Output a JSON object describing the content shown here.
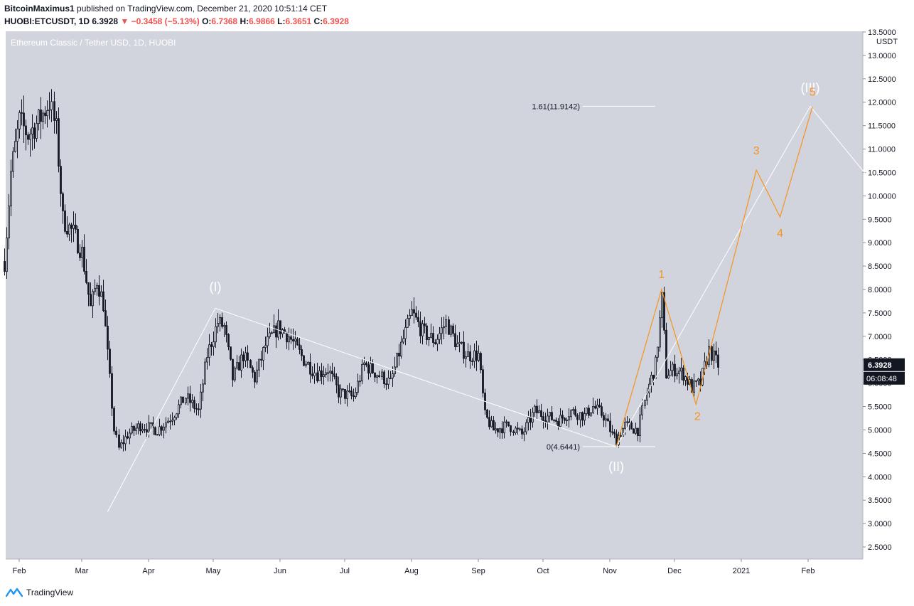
{
  "header": {
    "author": "BitcoinMaximus1",
    "published_text": "published on TradingView.com, December 21, 2020 10:51:14 CET",
    "symbol": "HUOBI:ETCUSDT, 1D",
    "last": "6.3928",
    "change_arrow": "▼",
    "change": "−0.3458 (−5.13%)",
    "o_label": "O:",
    "o_value": "6.7368",
    "h_label": "H:",
    "h_value": "6.9866",
    "l_label": "L:",
    "l_value": "6.3651",
    "c_label": "C:",
    "c_value": "6.3928"
  },
  "footer": {
    "brand": "TradingView",
    "logo_icon": "tradingview-logo-icon"
  },
  "colors": {
    "plot_bg": "#d1d4dc",
    "candle": "#131722",
    "wave_orange": "#f7931a",
    "wave_white": "#ffffff",
    "axis_text": "#131722",
    "negative": "#ef5350"
  },
  "chart_data": {
    "type": "candlestick",
    "title": "Ethereum Classic / Tether USD, 1D, HUOBI",
    "currency_label": "USDT",
    "last_price_tag": "6.3928",
    "countdown_tag": "06:08:48",
    "ylim": [
      2.1,
      13.6
    ],
    "y_ticks": [
      "13.5000",
      "13.0000",
      "12.5000",
      "12.0000",
      "11.5000",
      "11.0000",
      "10.5000",
      "10.0000",
      "9.5000",
      "9.0000",
      "8.5000",
      "8.0000",
      "7.5000",
      "7.0000",
      "6.5000",
      "6.0000",
      "5.5000",
      "5.0000",
      "4.5000",
      "4.0000",
      "3.5000",
      "3.0000",
      "2.5000"
    ],
    "x_ticks": [
      {
        "label": "Feb",
        "date": "2020-02-01"
      },
      {
        "label": "Mar",
        "date": "2020-03-01"
      },
      {
        "label": "Apr",
        "date": "2020-04-01"
      },
      {
        "label": "May",
        "date": "2020-05-01"
      },
      {
        "label": "Jun",
        "date": "2020-06-01"
      },
      {
        "label": "Jul",
        "date": "2020-07-01"
      },
      {
        "label": "Aug",
        "date": "2020-08-01"
      },
      {
        "label": "Sep",
        "date": "2020-09-01"
      },
      {
        "label": "Oct",
        "date": "2020-10-01"
      },
      {
        "label": "Nov",
        "date": "2020-11-01"
      },
      {
        "label": "Dec",
        "date": "2020-12-01"
      },
      {
        "label": "2021",
        "date": "2021-01-01"
      },
      {
        "label": "Feb",
        "date": "2021-02-01"
      }
    ],
    "price_path": [
      {
        "date": "2020-01-25",
        "close": 8.6
      },
      {
        "date": "2020-01-28",
        "close": 10.5
      },
      {
        "date": "2020-02-01",
        "close": 11.6
      },
      {
        "date": "2020-02-05",
        "close": 11.3
      },
      {
        "date": "2020-02-10",
        "close": 11.6
      },
      {
        "date": "2020-02-15",
        "close": 12.0
      },
      {
        "date": "2020-02-18",
        "close": 11.4
      },
      {
        "date": "2020-02-21",
        "close": 9.5
      },
      {
        "date": "2020-02-26",
        "close": 9.2
      },
      {
        "date": "2020-03-01",
        "close": 8.8
      },
      {
        "date": "2020-03-05",
        "close": 7.6
      },
      {
        "date": "2020-03-08",
        "close": 8.2
      },
      {
        "date": "2020-03-11",
        "close": 7.7
      },
      {
        "date": "2020-03-13",
        "close": 6.6
      },
      {
        "date": "2020-03-16",
        "close": 5.0
      },
      {
        "date": "2020-03-18",
        "close": 4.6
      },
      {
        "date": "2020-03-22",
        "close": 4.9
      },
      {
        "date": "2020-03-28",
        "close": 5.1
      },
      {
        "date": "2020-04-05",
        "close": 5.0
      },
      {
        "date": "2020-04-12",
        "close": 5.3
      },
      {
        "date": "2020-04-18",
        "close": 5.7
      },
      {
        "date": "2020-04-24",
        "close": 5.4
      },
      {
        "date": "2020-04-28",
        "close": 6.6
      },
      {
        "date": "2020-05-03",
        "close": 7.3
      },
      {
        "date": "2020-05-06",
        "close": 7.2
      },
      {
        "date": "2020-05-10",
        "close": 6.1
      },
      {
        "date": "2020-05-15",
        "close": 6.6
      },
      {
        "date": "2020-05-20",
        "close": 6.1
      },
      {
        "date": "2020-05-25",
        "close": 6.8
      },
      {
        "date": "2020-05-31",
        "close": 7.2
      },
      {
        "date": "2020-06-05",
        "close": 7.0
      },
      {
        "date": "2020-06-12",
        "close": 6.5
      },
      {
        "date": "2020-06-18",
        "close": 6.2
      },
      {
        "date": "2020-06-23",
        "close": 6.3
      },
      {
        "date": "2020-06-28",
        "close": 5.8
      },
      {
        "date": "2020-07-05",
        "close": 5.7
      },
      {
        "date": "2020-07-10",
        "close": 6.4
      },
      {
        "date": "2020-07-16",
        "close": 6.2
      },
      {
        "date": "2020-07-22",
        "close": 6.0
      },
      {
        "date": "2020-07-27",
        "close": 6.8
      },
      {
        "date": "2020-08-01",
        "close": 7.5
      },
      {
        "date": "2020-08-06",
        "close": 7.1
      },
      {
        "date": "2020-08-12",
        "close": 6.9
      },
      {
        "date": "2020-08-17",
        "close": 7.3
      },
      {
        "date": "2020-08-22",
        "close": 6.8
      },
      {
        "date": "2020-08-27",
        "close": 6.6
      },
      {
        "date": "2020-09-01",
        "close": 6.6
      },
      {
        "date": "2020-09-04",
        "close": 5.3
      },
      {
        "date": "2020-09-08",
        "close": 5.0
      },
      {
        "date": "2020-09-15",
        "close": 5.1
      },
      {
        "date": "2020-09-21",
        "close": 4.9
      },
      {
        "date": "2020-09-27",
        "close": 5.4
      },
      {
        "date": "2020-10-02",
        "close": 5.3
      },
      {
        "date": "2020-10-08",
        "close": 5.2
      },
      {
        "date": "2020-10-14",
        "close": 5.4
      },
      {
        "date": "2020-10-20",
        "close": 5.3
      },
      {
        "date": "2020-10-24",
        "close": 5.5
      },
      {
        "date": "2020-10-29",
        "close": 5.3
      },
      {
        "date": "2020-11-02",
        "close": 4.9
      },
      {
        "date": "2020-11-04",
        "close": 4.8
      },
      {
        "date": "2020-11-08",
        "close": 5.1
      },
      {
        "date": "2020-11-14",
        "close": 5.0
      },
      {
        "date": "2020-11-18",
        "close": 5.8
      },
      {
        "date": "2020-11-22",
        "close": 6.4
      },
      {
        "date": "2020-11-25",
        "close": 7.8
      },
      {
        "date": "2020-11-27",
        "close": 6.2
      },
      {
        "date": "2020-12-01",
        "close": 6.3
      },
      {
        "date": "2020-12-05",
        "close": 6.2
      },
      {
        "date": "2020-12-09",
        "close": 5.9
      },
      {
        "date": "2020-12-13",
        "close": 6.0
      },
      {
        "date": "2020-12-17",
        "close": 6.7
      },
      {
        "date": "2020-12-21",
        "close": 6.39
      }
    ],
    "annotations": {
      "fib_levels": [
        {
          "label": "1.61(11.9142)",
          "value": 11.9142
        },
        {
          "label": "0(4.6441)",
          "value": 4.6441
        }
      ],
      "white_waves": [
        {
          "label": "(I)",
          "date": "2020-05-02",
          "value": 7.6
        },
        {
          "label": "(II)",
          "date": "2020-11-04",
          "value": 4.64
        },
        {
          "label": "(III)",
          "date": "2021-02-02",
          "value": 11.91
        }
      ],
      "white_path": [
        {
          "date": "2020-03-13",
          "value": 3.25
        },
        {
          "date": "2020-05-02",
          "value": 7.6
        },
        {
          "date": "2020-11-04",
          "value": 4.64
        },
        {
          "date": "2021-02-02",
          "value": 11.91
        },
        {
          "date": "2021-02-28",
          "value": 10.45
        }
      ],
      "orange_waves": [
        {
          "label": "1",
          "date": "2020-11-25",
          "value": 8.0
        },
        {
          "label": "2",
          "date": "2020-12-11",
          "value": 5.55
        },
        {
          "label": "3",
          "date": "2021-01-08",
          "value": 10.55
        },
        {
          "label": "4",
          "date": "2021-01-19",
          "value": 9.55
        },
        {
          "label": "5",
          "date": "2021-02-03",
          "value": 11.9
        }
      ],
      "orange_path": [
        {
          "date": "2020-11-04",
          "value": 4.64
        },
        {
          "date": "2020-11-25",
          "value": 8.0
        },
        {
          "date": "2020-12-11",
          "value": 5.55
        },
        {
          "date": "2021-01-08",
          "value": 10.55
        },
        {
          "date": "2021-01-19",
          "value": 9.55
        },
        {
          "date": "2021-02-03",
          "value": 11.9
        }
      ]
    }
  }
}
